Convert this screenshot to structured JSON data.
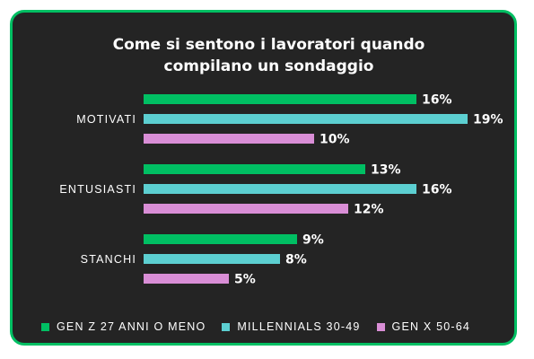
{
  "chart_data": {
    "type": "bar",
    "orientation": "horizontal",
    "title_lines": [
      "Come si sentono i lavoratori quando",
      "compilano un sondaggio"
    ],
    "categories": [
      "MOTIVATI",
      "ENTUSIASTI",
      "STANCHI"
    ],
    "series": [
      {
        "name": "GEN Z 27 ANNI O MENO",
        "color": "#00bf63",
        "values": [
          16,
          13,
          9
        ],
        "labels": [
          "16%",
          "13%",
          "9%"
        ]
      },
      {
        "name": "MILLENNIALS 30-49",
        "color": "#5ccfd1",
        "values": [
          19,
          16,
          8
        ],
        "labels": [
          "19%",
          "16%",
          "8%"
        ]
      },
      {
        "name": "GEN X 50-64",
        "color": "#d98ed6",
        "values": [
          10,
          12,
          5
        ],
        "labels": [
          "10%",
          "12%",
          "5%"
        ]
      }
    ],
    "value_unit": "%",
    "grid": false,
    "legend_position": "bottom"
  },
  "colors": {
    "background": "#242424",
    "border": "#00bf63",
    "text": "#ffffff"
  }
}
